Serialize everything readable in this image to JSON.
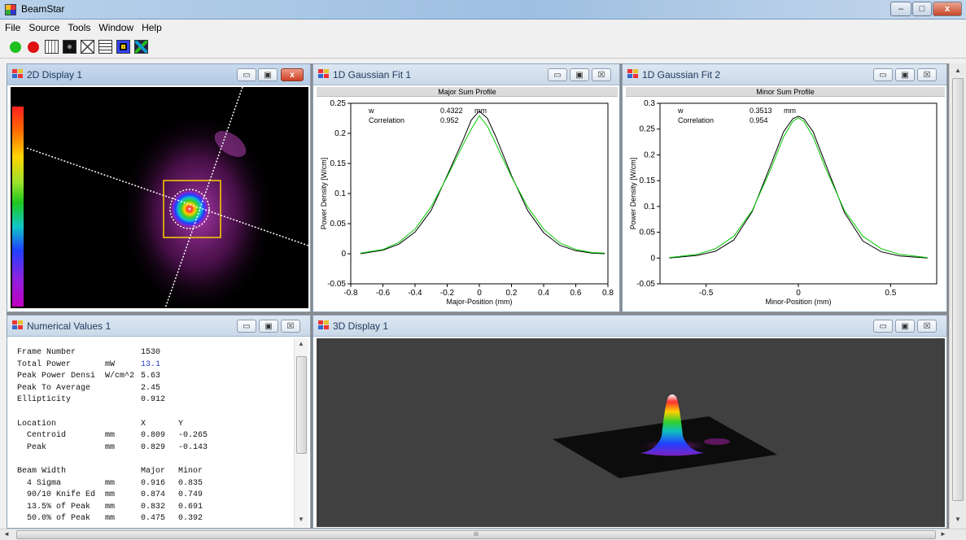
{
  "window": {
    "title": "BeamStar",
    "minimize": "–",
    "maximize": "□",
    "close": "x"
  },
  "menu": [
    "File",
    "Source",
    "Tools",
    "Window",
    "Help"
  ],
  "panels": {
    "display2d": {
      "title": "2D Display 1"
    },
    "fit1": {
      "title": "1D Gaussian Fit 1",
      "subtitle": "Major Sum Profile",
      "w_label": "w",
      "w_value": "0.4322",
      "w_unit": "mm",
      "corr_label": "Correlation",
      "corr_value": "0.952",
      "xlabel": "Major-Position (mm)",
      "ylabel": "Power Density [W/cm]"
    },
    "fit2": {
      "title": "1D Gaussian Fit 2",
      "subtitle": "Minor Sum Profile",
      "w_label": "w",
      "w_value": "0.3513",
      "w_unit": "mm",
      "corr_label": "Correlation",
      "corr_value": "0.954",
      "xlabel": "Minor-Position (mm)",
      "ylabel": "Power Density [W/cm]"
    },
    "numerical": {
      "title": "Numerical Values 1",
      "rows": [
        [
          "Frame Number",
          "",
          "1530",
          ""
        ],
        [
          "Total Power",
          "mW",
          "13.1",
          ""
        ],
        [
          "Peak Power Densi",
          "W/cm^2",
          "5.63",
          ""
        ],
        [
          "Peak To Average",
          "",
          "2.45",
          ""
        ],
        [
          "Ellipticity",
          "",
          "0.912",
          ""
        ],
        [
          "",
          "",
          "",
          ""
        ],
        [
          "Location",
          "",
          "X",
          "Y"
        ],
        [
          "  Centroid",
          "mm",
          "0.809",
          "-0.265"
        ],
        [
          "  Peak",
          "mm",
          "0.829",
          "-0.143"
        ],
        [
          "",
          "",
          "",
          ""
        ],
        [
          "Beam Width",
          "",
          "Major",
          "Minor"
        ],
        [
          "  4 Sigma",
          "mm",
          "0.916",
          "0.835"
        ],
        [
          "  90/10 Knife Ed",
          "mm",
          "0.874",
          "0.749"
        ],
        [
          "  13.5% of Peak",
          "mm",
          "0.832",
          "0.691"
        ],
        [
          "  50.0% of Peak",
          "mm",
          "0.475",
          "0.392"
        ]
      ]
    },
    "display3d": {
      "title": "3D Display 1"
    }
  },
  "scroll": {
    "h_grip": "III"
  },
  "chart_data": [
    {
      "type": "line",
      "title": "Major Sum Profile",
      "xlabel": "Major-Position (mm)",
      "ylabel": "Power Density [W/cm]",
      "xlim": [
        -0.8,
        0.8
      ],
      "ylim": [
        -0.05,
        0.25
      ],
      "xticks": [
        "-0.8",
        "-0.6",
        "-0.4",
        "-0.2",
        "0",
        "0.2",
        "0.4",
        "0.6",
        "0.8"
      ],
      "yticks": [
        "-0.05",
        "0",
        "0.05",
        "0.1",
        "0.15",
        "0.2",
        "0.25"
      ],
      "series": [
        {
          "color": "#000000",
          "x": [
            -0.74,
            -0.6,
            -0.5,
            -0.4,
            -0.3,
            -0.2,
            -0.1,
            -0.05,
            0,
            0.05,
            0.1,
            0.2,
            0.3,
            0.4,
            0.5,
            0.6,
            0.7,
            0.78
          ],
          "y": [
            0.0,
            0.006,
            0.016,
            0.036,
            0.072,
            0.13,
            0.19,
            0.222,
            0.237,
            0.225,
            0.196,
            0.13,
            0.072,
            0.035,
            0.014,
            0.005,
            0.001,
            0.0
          ]
        },
        {
          "color": "#00cc00",
          "x": [
            -0.74,
            -0.6,
            -0.5,
            -0.4,
            -0.3,
            -0.2,
            -0.1,
            -0.05,
            0,
            0.05,
            0.1,
            0.2,
            0.3,
            0.4,
            0.5,
            0.6,
            0.7,
            0.78
          ],
          "y": [
            0.001,
            0.007,
            0.019,
            0.041,
            0.078,
            0.128,
            0.182,
            0.207,
            0.229,
            0.212,
            0.184,
            0.128,
            0.078,
            0.041,
            0.018,
            0.007,
            0.002,
            0.001
          ]
        }
      ]
    },
    {
      "type": "line",
      "title": "Minor Sum Profile",
      "xlabel": "Minor-Position (mm)",
      "ylabel": "Power Density [W/cm]",
      "xlim": [
        -0.75,
        0.75
      ],
      "ylim": [
        -0.05,
        0.3
      ],
      "xticks": [
        "-0.5",
        "0",
        "0.5"
      ],
      "yticks": [
        "-0.05",
        "0",
        "0.05",
        "0.1",
        "0.15",
        "0.2",
        "0.25",
        "0.3"
      ],
      "series": [
        {
          "color": "#000000",
          "x": [
            -0.7,
            -0.55,
            -0.45,
            -0.35,
            -0.25,
            -0.15,
            -0.08,
            -0.03,
            0,
            0.03,
            0.08,
            0.15,
            0.25,
            0.35,
            0.45,
            0.55,
            0.7
          ],
          "y": [
            0.0,
            0.005,
            0.013,
            0.035,
            0.09,
            0.18,
            0.245,
            0.27,
            0.275,
            0.27,
            0.245,
            0.18,
            0.088,
            0.033,
            0.012,
            0.004,
            0.0
          ]
        },
        {
          "color": "#00cc00",
          "x": [
            -0.7,
            -0.55,
            -0.45,
            -0.35,
            -0.25,
            -0.15,
            -0.08,
            -0.03,
            0,
            0.03,
            0.08,
            0.15,
            0.25,
            0.35,
            0.45,
            0.55,
            0.7
          ],
          "y": [
            0.001,
            0.007,
            0.018,
            0.042,
            0.092,
            0.172,
            0.235,
            0.265,
            0.272,
            0.265,
            0.235,
            0.172,
            0.092,
            0.042,
            0.018,
            0.007,
            0.001
          ]
        }
      ]
    }
  ]
}
